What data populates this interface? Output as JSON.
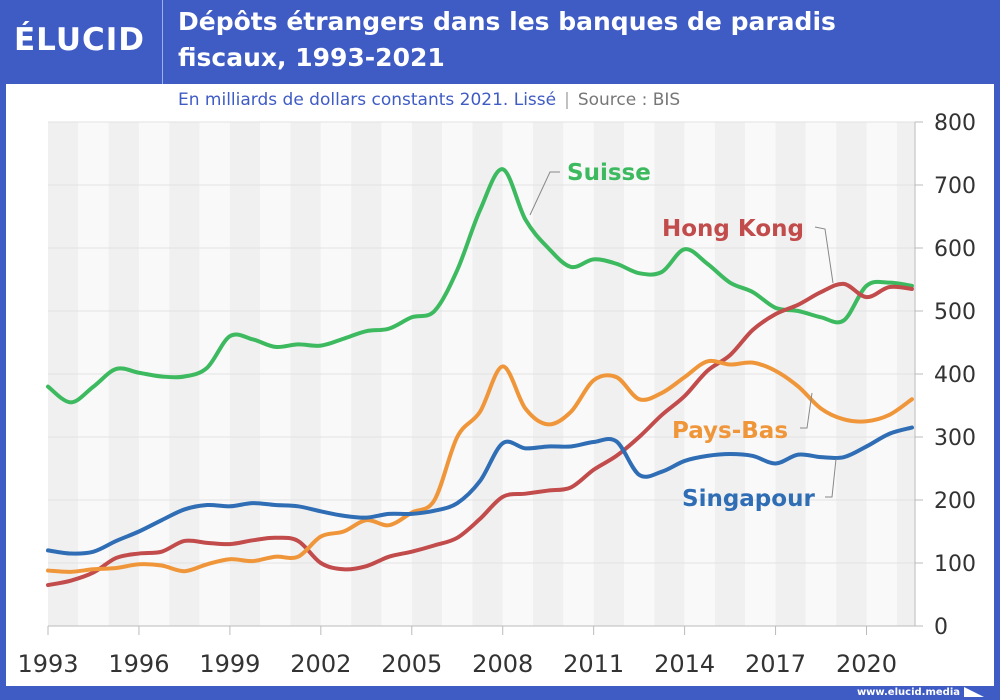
{
  "header": {
    "logo": "ÉLUCID",
    "title_line1": "Dépôts étrangers dans les banques de paradis",
    "title_line2": "fiscaux, 1993-2021"
  },
  "subtitle": {
    "unit": "En milliards de dollars constants 2021. Lissé",
    "separator": "|",
    "source": "Source : BIS"
  },
  "footer": {
    "url": "www.elucid.media"
  },
  "chart_data": {
    "type": "line",
    "title": "Dépôts étrangers dans les banques de paradis fiscaux, 1993-2021",
    "subtitle": "En milliards de dollars constants 2021. Lissé",
    "xlabel": "",
    "ylabel": "",
    "xlim": [
      1993,
      2021.6
    ],
    "ylim": [
      0,
      800
    ],
    "x_ticks": [
      "1993",
      "1996",
      "1999",
      "2002",
      "2005",
      "2008",
      "2011",
      "2014",
      "2017",
      "2020"
    ],
    "y_ticks": [
      "0",
      "100",
      "200",
      "300",
      "400",
      "500",
      "600",
      "700",
      "800"
    ],
    "grid": true,
    "legend": "inline-labels",
    "x": [
      1993,
      1993.75,
      1994.5,
      1995.25,
      1996,
      1996.75,
      1997.5,
      1998.25,
      1999,
      1999.75,
      2000.5,
      2001.25,
      2002,
      2002.75,
      2003.5,
      2004.25,
      2005,
      2005.75,
      2006.5,
      2007.25,
      2008,
      2008.75,
      2009.5,
      2010.25,
      2011,
      2011.75,
      2012.5,
      2013.25,
      2014,
      2014.75,
      2015.5,
      2016.25,
      2017,
      2017.75,
      2018.5,
      2019.25,
      2020,
      2020.75,
      2021.5
    ],
    "series": [
      {
        "name": "Suisse",
        "color": "#3dba5f",
        "label": "Suisse",
        "values": [
          380,
          355,
          380,
          408,
          402,
          396,
          396,
          410,
          460,
          455,
          443,
          447,
          445,
          456,
          468,
          472,
          490,
          500,
          565,
          660,
          725,
          645,
          600,
          570,
          582,
          575,
          560,
          562,
          598,
          575,
          545,
          530,
          505,
          500,
          490,
          485,
          540,
          545,
          540
        ]
      },
      {
        "name": "Hong Kong",
        "color": "#c24b4b",
        "label": "Hong Kong",
        "values": [
          65,
          72,
          85,
          108,
          115,
          118,
          135,
          132,
          130,
          136,
          140,
          135,
          100,
          90,
          95,
          110,
          118,
          128,
          140,
          170,
          205,
          210,
          215,
          220,
          248,
          270,
          300,
          335,
          365,
          405,
          430,
          470,
          495,
          510,
          530,
          543,
          522,
          538,
          535
        ]
      },
      {
        "name": "Pays-Bas",
        "color": "#f0963a",
        "label": "Pays-Bas",
        "values": [
          88,
          86,
          90,
          92,
          98,
          96,
          87,
          98,
          106,
          103,
          110,
          110,
          142,
          150,
          168,
          160,
          180,
          200,
          300,
          340,
          412,
          345,
          320,
          340,
          390,
          395,
          360,
          370,
          395,
          420,
          415,
          418,
          405,
          380,
          345,
          328,
          325,
          335,
          360
        ]
      },
      {
        "name": "Singapour",
        "color": "#2f6db5",
        "label": "Singapour",
        "values": [
          120,
          115,
          118,
          135,
          150,
          168,
          185,
          192,
          190,
          195,
          192,
          190,
          182,
          175,
          172,
          178,
          178,
          183,
          195,
          230,
          290,
          282,
          285,
          285,
          292,
          293,
          240,
          245,
          262,
          270,
          273,
          270,
          258,
          272,
          268,
          268,
          285,
          305,
          315
        ]
      }
    ]
  }
}
